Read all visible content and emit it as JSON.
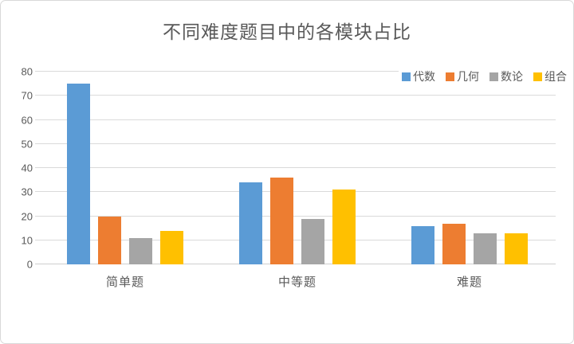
{
  "chart_data": {
    "type": "bar",
    "title": "不同难度题目中的各模块占比",
    "categories": [
      "简单题",
      "中等题",
      "难题"
    ],
    "series": [
      {
        "name": "代数",
        "color": "#5B9BD5",
        "values": [
          75,
          34,
          16
        ]
      },
      {
        "name": "几何",
        "color": "#ED7D31",
        "values": [
          20,
          36,
          17
        ]
      },
      {
        "name": "数论",
        "color": "#A5A5A5",
        "values": [
          11,
          19,
          13
        ]
      },
      {
        "name": "组合",
        "color": "#FFC000",
        "values": [
          14,
          31,
          13
        ]
      }
    ],
    "xlabel": "",
    "ylabel": "",
    "ylim": [
      0,
      80
    ],
    "ytick_step": 10,
    "yticks": [
      0,
      10,
      20,
      30,
      40,
      50,
      60,
      70,
      80
    ],
    "grid": true,
    "legend_position": "top-right"
  },
  "colors": {
    "title_text": "#595959",
    "axis_text": "#595959",
    "gridline": "#DADADA",
    "baseline": "#CFCFCF",
    "frame_border": "#D9D9D9",
    "background": "#FFFFFF"
  }
}
